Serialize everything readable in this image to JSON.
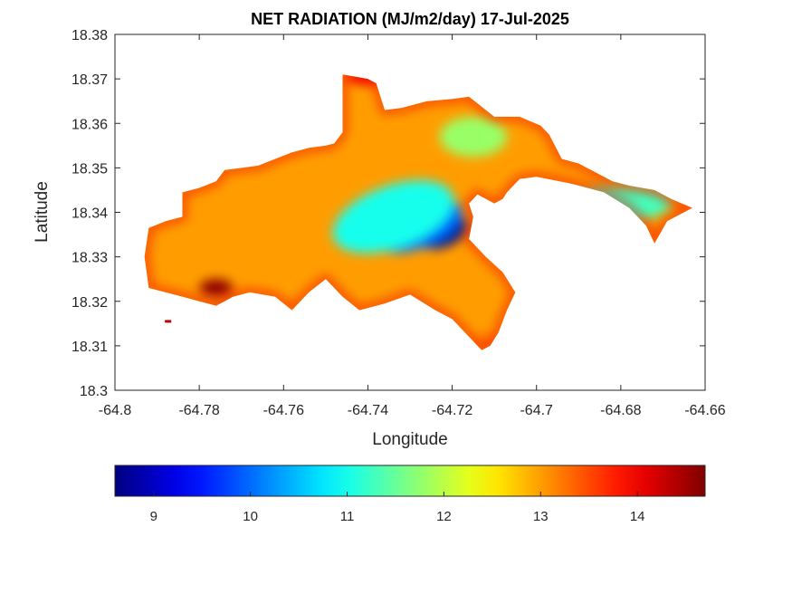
{
  "chart_data": {
    "type": "heatmap",
    "title": "NET RADIATION (MJ/m2/day) 17-Jul-2025",
    "xlabel": "Longitude",
    "ylabel": "Latitude",
    "xlim": [
      -64.8,
      -64.66
    ],
    "ylim": [
      18.3,
      18.38
    ],
    "xticks": [
      -64.8,
      -64.78,
      -64.76,
      -64.74,
      -64.72,
      -64.7,
      -64.68,
      -64.66
    ],
    "xtick_labels": [
      "-64.8",
      "-64.78",
      "-64.76",
      "-64.74",
      "-64.72",
      "-64.7",
      "-64.68",
      "-64.66"
    ],
    "yticks": [
      18.3,
      18.31,
      18.32,
      18.33,
      18.34,
      18.35,
      18.36,
      18.37,
      18.38
    ],
    "ytick_labels": [
      "18.3",
      "18.31",
      "18.32",
      "18.33",
      "18.34",
      "18.35",
      "18.36",
      "18.37",
      "18.38"
    ],
    "grid": false,
    "colormap": "jet",
    "colorbar": {
      "location": "bottom",
      "clim": [
        8.6,
        14.7
      ],
      "ticks": [
        9,
        10,
        11,
        12,
        13,
        14
      ],
      "tick_labels": [
        "9",
        "10",
        "11",
        "12",
        "13",
        "14"
      ]
    },
    "island_outline": [
      [
        -64.792,
        18.3365
      ],
      [
        -64.788,
        18.338
      ],
      [
        -64.784,
        18.339
      ],
      [
        -64.784,
        18.3445
      ],
      [
        -64.78,
        18.3455
      ],
      [
        -64.776,
        18.347
      ],
      [
        -64.774,
        18.3495
      ],
      [
        -64.77,
        18.35
      ],
      [
        -64.766,
        18.3505
      ],
      [
        -64.762,
        18.352
      ],
      [
        -64.758,
        18.3535
      ],
      [
        -64.754,
        18.3545
      ],
      [
        -64.75,
        18.355
      ],
      [
        -64.748,
        18.3555
      ],
      [
        -64.746,
        18.358
      ],
      [
        -64.746,
        18.371
      ],
      [
        -64.74,
        18.37
      ],
      [
        -64.738,
        18.369
      ],
      [
        -64.736,
        18.363
      ],
      [
        -64.732,
        18.3635
      ],
      [
        -64.726,
        18.365
      ],
      [
        -64.72,
        18.3655
      ],
      [
        -64.716,
        18.366
      ],
      [
        -64.714,
        18.3645
      ],
      [
        -64.71,
        18.3615
      ],
      [
        -64.704,
        18.3615
      ],
      [
        -64.699,
        18.3595
      ],
      [
        -64.697,
        18.3575
      ],
      [
        -64.694,
        18.352
      ],
      [
        -64.69,
        18.351
      ],
      [
        -64.686,
        18.349
      ],
      [
        -64.682,
        18.347
      ],
      [
        -64.678,
        18.346
      ],
      [
        -64.672,
        18.345
      ],
      [
        -64.668,
        18.343
      ],
      [
        -64.663,
        18.341
      ],
      [
        -64.669,
        18.338
      ],
      [
        -64.672,
        18.333
      ],
      [
        -64.674,
        18.337
      ],
      [
        -64.678,
        18.341
      ],
      [
        -64.684,
        18.3445
      ],
      [
        -64.692,
        18.3465
      ],
      [
        -64.7,
        18.348
      ],
      [
        -64.704,
        18.3475
      ],
      [
        -64.707,
        18.3445
      ],
      [
        -64.708,
        18.343
      ],
      [
        -64.71,
        18.342
      ],
      [
        -64.714,
        18.344
      ],
      [
        -64.716,
        18.342
      ],
      [
        -64.715,
        18.339
      ],
      [
        -64.716,
        18.334
      ],
      [
        -64.712,
        18.33
      ],
      [
        -64.708,
        18.3265
      ],
      [
        -64.705,
        18.322
      ],
      [
        -64.707,
        18.318
      ],
      [
        -64.709,
        18.313
      ],
      [
        -64.711,
        18.31
      ],
      [
        -64.713,
        18.309
      ],
      [
        -64.716,
        18.312
      ],
      [
        -64.72,
        18.316
      ],
      [
        -64.724,
        18.318
      ],
      [
        -64.73,
        18.3215
      ],
      [
        -64.736,
        18.3195
      ],
      [
        -64.742,
        18.318
      ],
      [
        -64.746,
        18.321
      ],
      [
        -64.75,
        18.325
      ],
      [
        -64.754,
        18.322
      ],
      [
        -64.758,
        18.318
      ],
      [
        -64.762,
        18.321
      ],
      [
        -64.768,
        18.322
      ],
      [
        -64.772,
        18.321
      ],
      [
        -64.776,
        18.319
      ],
      [
        -64.78,
        18.32
      ],
      [
        -64.784,
        18.321
      ],
      [
        -64.788,
        18.322
      ],
      [
        -64.792,
        18.323
      ],
      [
        -64.793,
        18.33
      ]
    ],
    "field_centers": [
      {
        "lon": -64.722,
        "lat": 18.3355,
        "value": 8.7,
        "rlon": 0.006,
        "rlat": 0.0032,
        "angle": -25
      },
      {
        "lon": -64.728,
        "lat": 18.337,
        "value": 10.0,
        "rlon": 0.011,
        "rlat": 0.005,
        "angle": -22
      },
      {
        "lon": -64.734,
        "lat": 18.339,
        "value": 11.0,
        "rlon": 0.015,
        "rlat": 0.007,
        "angle": -20
      },
      {
        "lon": -64.715,
        "lat": 18.357,
        "value": 11.8,
        "rlon": 0.008,
        "rlat": 0.0045,
        "angle": 0
      },
      {
        "lon": -64.68,
        "lat": 18.342,
        "value": 11.3,
        "rlon": 0.012,
        "rlat": 0.004,
        "angle": 0
      },
      {
        "lon": -64.776,
        "lat": 18.323,
        "value": 14.6,
        "rlon": 0.004,
        "rlat": 0.002,
        "angle": 0
      },
      {
        "lon": -64.74,
        "lat": 18.3705,
        "value": 14.0,
        "rlon": 0.005,
        "rlat": 0.0015,
        "angle": 0
      },
      {
        "lon": -64.712,
        "lat": 18.311,
        "value": 13.2,
        "rlon": 0.003,
        "rlat": 0.002,
        "angle": 0
      }
    ],
    "field_base": 13.0,
    "islets": [
      {
        "lon": -64.7875,
        "lat": 18.3155,
        "value": 14.3
      }
    ]
  }
}
